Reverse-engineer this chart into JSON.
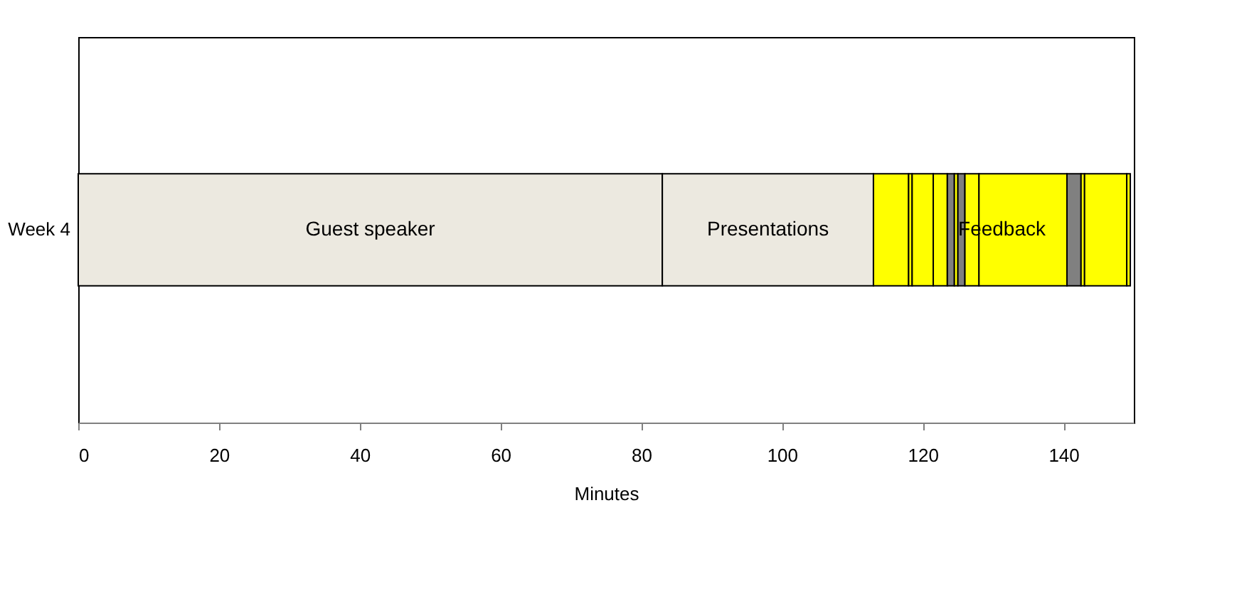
{
  "chart_data": {
    "type": "bar",
    "orientation": "horizontal",
    "stacked": true,
    "categories": [
      "Week 4"
    ],
    "xlabel": "Minutes",
    "xlim": [
      0,
      150
    ],
    "xticks": [
      0,
      20,
      40,
      60,
      80,
      100,
      120,
      140
    ],
    "grid": false,
    "legend": false,
    "series": [
      {
        "name": "Guest speaker",
        "color": "#ece9e0",
        "values": [
          83
        ]
      },
      {
        "name": "Presentations",
        "color": "#ece9e0",
        "values": [
          30
        ]
      },
      {
        "color": "#ffff00",
        "values": [
          5
        ]
      },
      {
        "color": "#ffff00",
        "values": [
          0.5
        ]
      },
      {
        "color": "#ffff00",
        "values": [
          3
        ]
      },
      {
        "color": "#ffff00",
        "values": [
          2
        ]
      },
      {
        "color": "#808080",
        "values": [
          1
        ]
      },
      {
        "color": "#ffff00",
        "values": [
          0.5
        ]
      },
      {
        "color": "#808080",
        "values": [
          1
        ]
      },
      {
        "color": "#ffff00",
        "values": [
          2
        ]
      },
      {
        "color": "#ffff00",
        "values": [
          12.5
        ]
      },
      {
        "color": "#808080",
        "values": [
          2
        ]
      },
      {
        "color": "#ffff00",
        "values": [
          0.5
        ]
      },
      {
        "color": "#ffff00",
        "values": [
          6
        ]
      },
      {
        "color": "#ffff00",
        "values": [
          0.5
        ]
      }
    ],
    "annotations": [
      "Feedback"
    ]
  }
}
